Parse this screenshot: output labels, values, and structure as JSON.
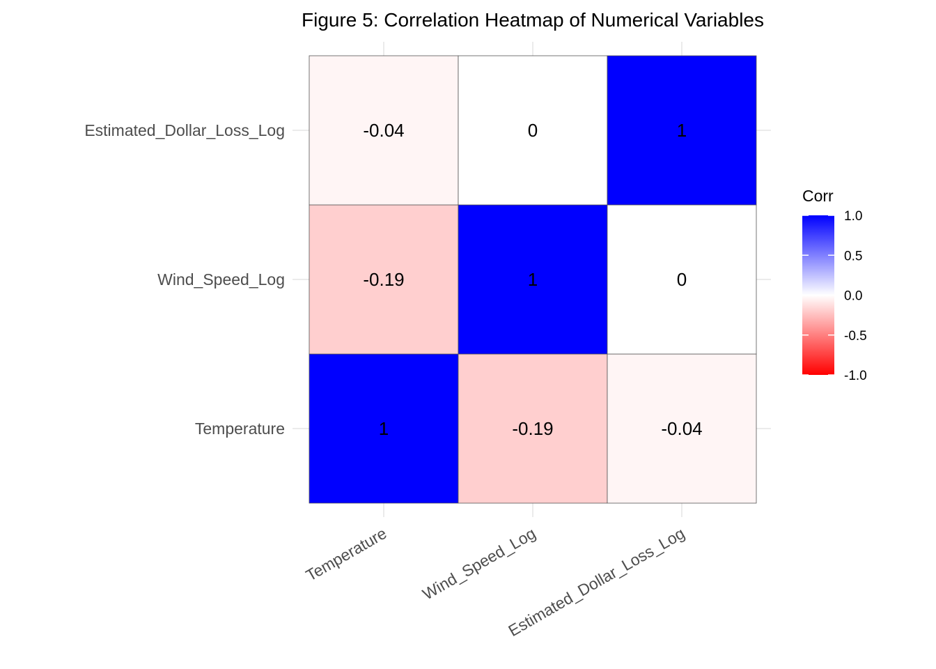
{
  "chart_data": {
    "type": "heatmap",
    "title": "Figure 5: Correlation Heatmap of Numerical Variables",
    "x_categories": [
      "Temperature",
      "Wind_Speed_Log",
      "Estimated_Dollar_Loss_Log"
    ],
    "y_categories": [
      "Temperature",
      "Wind_Speed_Log",
      "Estimated_Dollar_Loss_Log"
    ],
    "values": [
      [
        1,
        -0.19,
        -0.04
      ],
      [
        -0.19,
        1,
        0
      ],
      [
        -0.04,
        0,
        1
      ]
    ],
    "value_labels": [
      [
        "1",
        "-0.19",
        "-0.04"
      ],
      [
        "-0.19",
        "1",
        "0"
      ],
      [
        "-0.04",
        "0",
        "1"
      ]
    ],
    "legend": {
      "title": "Corr",
      "placement": "right",
      "range": [
        -1,
        1
      ],
      "ticks": [
        "1.0",
        "0.5",
        "0.0",
        "-0.5",
        "-1.0"
      ],
      "tick_values": [
        1,
        0.5,
        0,
        -0.5,
        -1
      ]
    },
    "colors": {
      "low": "#ff0000",
      "mid": "#ffffff",
      "high": "#0000ff"
    },
    "grid": true
  }
}
